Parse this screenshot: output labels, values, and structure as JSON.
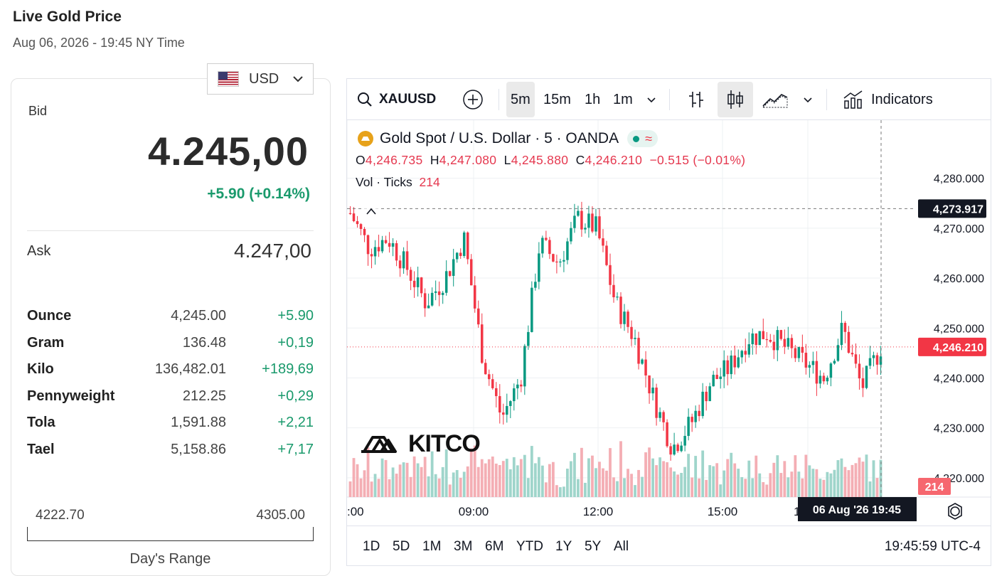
{
  "header": {
    "title": "Live Gold Price",
    "timestamp": "Aug 06, 2026 - 19:45 NY Time"
  },
  "currency": {
    "selected": "USD",
    "flag": "us-flag-icon"
  },
  "bid": {
    "label": "Bid",
    "value": "4.245,00",
    "change": "+5.90 (+0.14%)"
  },
  "ask": {
    "label": "Ask",
    "value": "4.247,00"
  },
  "units": [
    {
      "name": "Ounce",
      "value": "4,245.00",
      "change": "+5.90"
    },
    {
      "name": "Gram",
      "value": "136.48",
      "change": "+0,19"
    },
    {
      "name": "Kilo",
      "value": "136,482.01",
      "change": "+189,69"
    },
    {
      "name": "Pennyweight",
      "value": "212.25",
      "change": "+0,29"
    },
    {
      "name": "Tola",
      "value": "1,591.88",
      "change": "+2,21"
    },
    {
      "name": "Tael",
      "value": "5,158.86",
      "change": "+7,17"
    }
  ],
  "range": {
    "low": "4222.70",
    "high": "4305.00",
    "label": "Day's Range"
  },
  "colors": {
    "up": "#1a9a6c",
    "down": "#e5384f",
    "candle_up": "#089981",
    "candle_down": "#f23645",
    "text": "#131722"
  },
  "toolbar": {
    "symbol": "XAUUSD",
    "intervals": [
      "5m",
      "15m",
      "1h",
      "1m"
    ],
    "active_interval": "5m",
    "indicators_label": "Indicators"
  },
  "legend": {
    "title": "Gold Spot / U.S. Dollar · 5 · OANDA",
    "o_label": "O",
    "o": "4,246.735",
    "h_label": "H",
    "h": "4,247.080",
    "l_label": "L",
    "l": "4,245.880",
    "c_label": "C",
    "c": "4,246.210",
    "change": "−0.515 (−0.01%)",
    "vol_label": "Vol · Ticks",
    "vol_value": "214"
  },
  "watermark": "KITCO",
  "chart_data": {
    "type": "line",
    "title": "Gold Spot / U.S. Dollar · 5 · OANDA",
    "y_ticks": [
      "4,280.000",
      "4,270.000",
      "4,260.000",
      "4,250.000",
      "4,240.000",
      "4,230.000",
      "4,220.000"
    ],
    "ylim": [
      4213,
      4288
    ],
    "x_ticks": [
      ":00",
      "09:00",
      "12:00",
      "15:00",
      "1"
    ],
    "crosshair_price": "4,273.917",
    "last_price": "4,246.210",
    "last_volume": "214",
    "crosshair_time": "06 Aug '26   19:45",
    "series": [
      {
        "x": [
          "06:00",
          "06:30",
          "07:00",
          "07:30",
          "08:00",
          "08:30",
          "09:00",
          "09:30",
          "10:00",
          "10:30",
          "11:00",
          "11:30",
          "12:00",
          "12:30",
          "13:00",
          "13:30",
          "14:00",
          "14:30",
          "15:00",
          "15:30",
          "16:00",
          "16:30",
          "17:00",
          "17:30",
          "18:00",
          "18:30",
          "19:00",
          "19:30",
          "19:45"
        ],
        "values": [
          4273,
          4266,
          4268,
          4262,
          4255,
          4260,
          4268,
          4244,
          4232,
          4240,
          4267,
          4263,
          4272,
          4270,
          4255,
          4248,
          4236,
          4226,
          4231,
          4239,
          4242,
          4248,
          4249,
          4246,
          4243,
          4240,
          4250,
          4238,
          4246.21
        ]
      }
    ],
    "grid": true,
    "legend_position": "top-left"
  },
  "periods": [
    "1D",
    "5D",
    "1M",
    "3M",
    "6M",
    "YTD",
    "1Y",
    "5Y",
    "All"
  ],
  "clock": "19:45:59 UTC-4"
}
